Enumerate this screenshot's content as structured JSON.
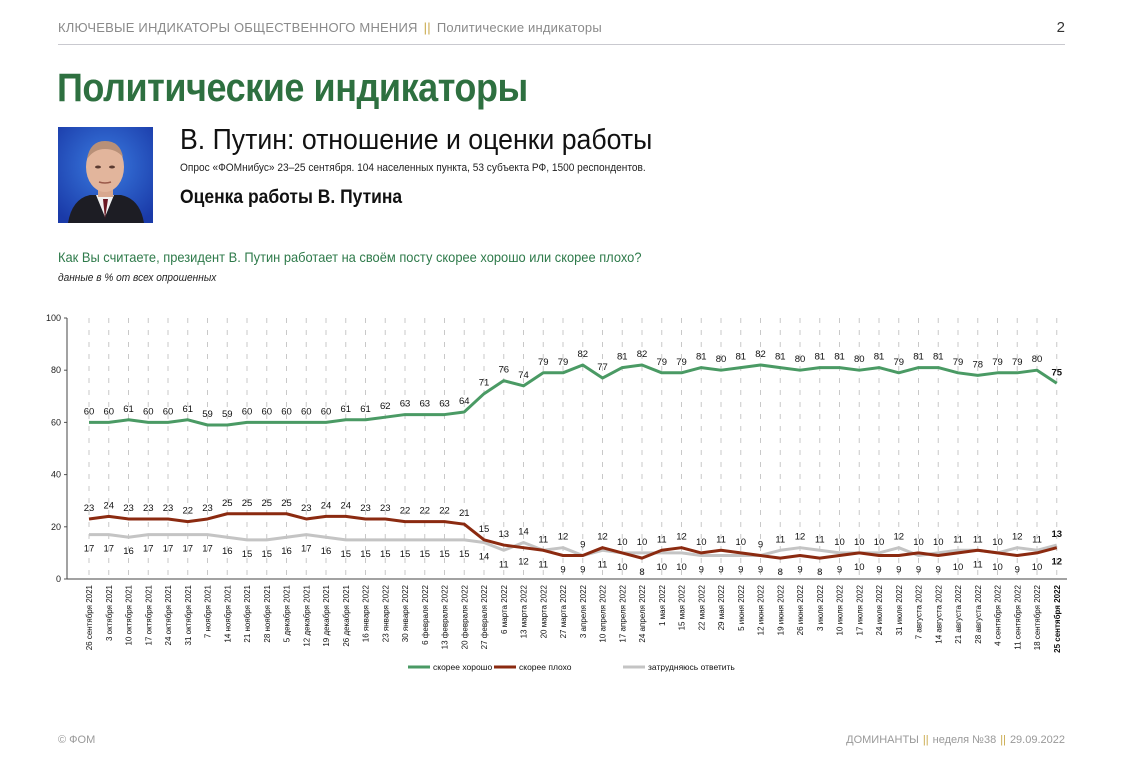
{
  "header": {
    "section": "КЛЮЧЕВЫЕ ИНДИКАТОРЫ ОБЩЕСТВЕННОГО МНЕНИЯ",
    "separator": "||",
    "subsection": "Политические индикаторы",
    "page_number": "2"
  },
  "title": "Политические индикаторы",
  "subtitle": "В. Путин: отношение и оценки работы",
  "survey_info": "Опрос «ФОМнибус» 23–25 сентября. 104 населенных пункта, 53 субъекта РФ, 1500 респондентов.",
  "section_title": "Оценка работы В. Путина",
  "question": "Как Вы считаете, президент В. Путин работает на своём посту скорее хорошо или скорее плохо?",
  "note": "данные в % от всех опрошенных",
  "footer": {
    "copyright": "© ФОМ",
    "publication": "ДОМИНАНТЫ",
    "week": "неделя №38",
    "date": "29.09.2022",
    "separator": "||"
  },
  "chart_data": {
    "type": "line",
    "ylim": [
      0,
      100
    ],
    "yticks": [
      0,
      20,
      40,
      60,
      80,
      100
    ],
    "grid": true,
    "legend_position": "bottom",
    "x": [
      "26 сентября 2021",
      "3 октября 2021",
      "10 октября 2021",
      "17 октября 2021",
      "24 октября 2021",
      "31 октября 2021",
      "7 ноября 2021",
      "14 ноября 2021",
      "21 ноября 2021",
      "28 ноября 2021",
      "5 декабря 2021",
      "12 декабря 2021",
      "19 декабря 2021",
      "26 декабря 2021",
      "16 января 2022",
      "23 января 2022",
      "30 января 2022",
      "6 февраля 2022",
      "13 февраля 2022",
      "20 февраля 2022",
      "27 февраля 2022",
      "6 марта 2022",
      "13 марта 2022",
      "20 марта 2022",
      "27 марта 2022",
      "3 апреля 2022",
      "10 апреля 2022",
      "17 апреля 2022",
      "24 апреля 2022",
      "1 мая 2022",
      "15 мая 2022",
      "22 мая 2022",
      "29 мая 2022",
      "5 июня 2022",
      "12 июня 2022",
      "19 июня 2022",
      "26 июня 2022",
      "3 июля 2022",
      "10 июля 2022",
      "17 июля 2022",
      "24 июля 2022",
      "31 июля 2022",
      "7 августа 2022",
      "14 августа 2022",
      "21 августа 2022",
      "28 августа 2022",
      "4 сентября 2022",
      "11 сентября 2022",
      "18 сентября 2022",
      "25 сентября 2022"
    ],
    "series": [
      {
        "name": "скорее хорошо",
        "color": "#4a9a64",
        "values": [
          60,
          60,
          61,
          60,
          60,
          61,
          59,
          59,
          60,
          60,
          60,
          60,
          60,
          61,
          61,
          62,
          63,
          63,
          63,
          64,
          71,
          76,
          74,
          79,
          79,
          82,
          77,
          81,
          82,
          79,
          79,
          81,
          80,
          81,
          82,
          81,
          80,
          81,
          81,
          80,
          81,
          79,
          81,
          81,
          79,
          78,
          79,
          79,
          80,
          75
        ]
      },
      {
        "name": "скорее плохо",
        "color": "#8b2a10",
        "values": [
          23,
          24,
          23,
          23,
          23,
          22,
          23,
          25,
          25,
          25,
          25,
          23,
          24,
          24,
          23,
          23,
          22,
          22,
          22,
          21,
          15,
          13,
          12,
          11,
          9,
          9,
          12,
          10,
          8,
          11,
          12,
          10,
          11,
          10,
          9,
          8,
          9,
          8,
          9,
          10,
          9,
          9,
          10,
          9,
          10,
          11,
          10,
          9,
          10,
          12
        ]
      },
      {
        "name": "затрудняюсь ответить",
        "color": "#c4c4c4",
        "values": [
          17,
          17,
          16,
          17,
          17,
          17,
          17,
          16,
          15,
          15,
          16,
          17,
          16,
          15,
          15,
          15,
          15,
          15,
          15,
          15,
          14,
          11,
          14,
          11,
          12,
          9,
          11,
          10,
          10,
          10,
          10,
          9,
          9,
          9,
          9,
          11,
          12,
          11,
          10,
          10,
          10,
          12,
          9,
          10,
          11,
          11,
          10,
          12,
          11,
          13
        ]
      }
    ]
  }
}
